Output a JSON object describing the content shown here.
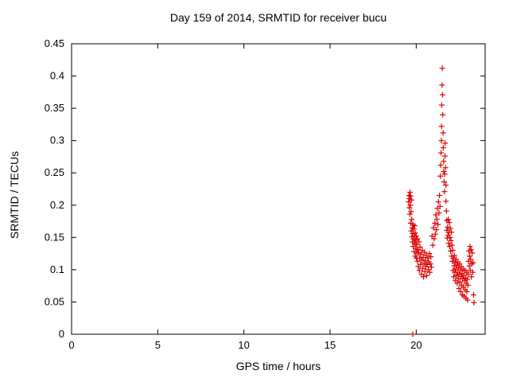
{
  "chart_data": {
    "type": "scatter",
    "title": "Day 159 of 2014, SRMTID for receiver bucu",
    "xlabel": "GPS time / hours",
    "ylabel": "SRMTID / TECUs",
    "xlim": [
      0,
      24
    ],
    "ylim": [
      0,
      0.45
    ],
    "grid": false,
    "legend": "none",
    "border_color": "#000000",
    "background": "#ffffff",
    "marker": {
      "shape": "plus",
      "color": "#dd0000",
      "size": 7
    },
    "xticks": {
      "values": [
        0,
        5,
        10,
        15,
        20
      ],
      "labels": [
        "0",
        "5",
        "10",
        "15",
        "20"
      ]
    },
    "yticks": {
      "values": [
        0,
        0.05,
        0.1,
        0.15,
        0.2,
        0.25,
        0.3,
        0.35,
        0.4,
        0.45
      ],
      "labels": [
        "0",
        "0.05",
        "0.1",
        "0.15",
        "0.2",
        "0.25",
        "0.3",
        "0.35",
        "0.4",
        "0.45"
      ]
    },
    "series": [
      {
        "name": "SRMTID",
        "points": [
          [
            19.56,
            0.205
          ],
          [
            19.58,
            0.215
          ],
          [
            19.6,
            0.196
          ],
          [
            19.61,
            0.21
          ],
          [
            19.63,
            0.186
          ],
          [
            19.64,
            0.22
          ],
          [
            19.66,
            0.2
          ],
          [
            19.67,
            0.214
          ],
          [
            19.68,
            0.172
          ],
          [
            19.7,
            0.19
          ],
          [
            19.71,
            0.16
          ],
          [
            19.72,
            0.208
          ],
          [
            19.74,
            0.178
          ],
          [
            19.75,
            0.151
          ],
          [
            19.77,
            0.165
          ],
          [
            19.78,
            0.143
          ],
          [
            19.8,
            0.0
          ],
          [
            19.8,
            0.156
          ],
          [
            19.82,
            0.17
          ],
          [
            19.83,
            0.136
          ],
          [
            19.85,
            0.148
          ],
          [
            19.86,
            0.163
          ],
          [
            19.88,
            0.128
          ],
          [
            19.89,
            0.152
          ],
          [
            19.91,
            0.168
          ],
          [
            19.92,
            0.141
          ],
          [
            19.94,
            0.157
          ],
          [
            19.95,
            0.121
          ],
          [
            19.97,
            0.146
          ],
          [
            19.98,
            0.133
          ],
          [
            20.0,
            0.152
          ],
          [
            20.01,
            0.118
          ],
          [
            20.03,
            0.139
          ],
          [
            20.04,
            0.126
          ],
          [
            20.06,
            0.148
          ],
          [
            20.08,
            0.113
          ],
          [
            20.1,
            0.131
          ],
          [
            20.12,
            0.105
          ],
          [
            20.14,
            0.126
          ],
          [
            20.16,
            0.143
          ],
          [
            20.18,
            0.099
          ],
          [
            20.2,
            0.118
          ],
          [
            20.22,
            0.135
          ],
          [
            20.25,
            0.108
          ],
          [
            20.27,
            0.124
          ],
          [
            20.3,
            0.093
          ],
          [
            20.32,
            0.115
          ],
          [
            20.35,
            0.13
          ],
          [
            20.37,
            0.102
          ],
          [
            20.4,
            0.119
          ],
          [
            20.42,
            0.089
          ],
          [
            20.45,
            0.11
          ],
          [
            20.48,
            0.127
          ],
          [
            20.5,
            0.097
          ],
          [
            20.53,
            0.114
          ],
          [
            20.56,
            0.105
          ],
          [
            20.58,
            0.122
          ],
          [
            20.61,
            0.091
          ],
          [
            20.64,
            0.108
          ],
          [
            20.67,
            0.118
          ],
          [
            20.7,
            0.1
          ],
          [
            20.73,
            0.112
          ],
          [
            20.76,
            0.125
          ],
          [
            20.79,
            0.096
          ],
          [
            20.82,
            0.109
          ],
          [
            20.85,
            0.12
          ],
          [
            20.88,
            0.104
          ],
          [
            20.92,
            0.152
          ],
          [
            20.96,
            0.138
          ],
          [
            21.0,
            0.165
          ],
          [
            21.04,
            0.148
          ],
          [
            21.08,
            0.172
          ],
          [
            21.11,
            0.155
          ],
          [
            21.14,
            0.185
          ],
          [
            21.17,
            0.162
          ],
          [
            21.2,
            0.178
          ],
          [
            21.23,
            0.195
          ],
          [
            21.26,
            0.17
          ],
          [
            21.29,
            0.205
          ],
          [
            21.32,
            0.188
          ],
          [
            21.35,
            0.215
          ],
          [
            21.38,
            0.198
          ],
          [
            21.4,
            0.245
          ],
          [
            21.42,
            0.262
          ],
          [
            21.44,
            0.281
          ],
          [
            21.46,
            0.3
          ],
          [
            21.47,
            0.322
          ],
          [
            21.48,
            0.355
          ],
          [
            21.5,
            0.386
          ],
          [
            21.51,
            0.412
          ],
          [
            21.53,
            0.371
          ],
          [
            21.54,
            0.34
          ],
          [
            21.56,
            0.312
          ],
          [
            21.57,
            0.289
          ],
          [
            21.59,
            0.268
          ],
          [
            21.6,
            0.252
          ],
          [
            21.62,
            0.236
          ],
          [
            21.64,
            0.221
          ],
          [
            21.65,
            0.248
          ],
          [
            21.67,
            0.276
          ],
          [
            21.68,
            0.296
          ],
          [
            21.7,
            0.258
          ],
          [
            21.72,
            0.231
          ],
          [
            21.73,
            0.206
          ],
          [
            21.75,
            0.191
          ],
          [
            21.77,
            0.176
          ],
          [
            21.78,
            0.161
          ],
          [
            21.8,
            0.149
          ],
          [
            21.82,
            0.166
          ],
          [
            21.84,
            0.153
          ],
          [
            21.86,
            0.178
          ],
          [
            21.88,
            0.141
          ],
          [
            21.9,
            0.158
          ],
          [
            21.92,
            0.173
          ],
          [
            21.94,
            0.136
          ],
          [
            21.96,
            0.15
          ],
          [
            21.98,
            0.164
          ],
          [
            22.0,
            0.129
          ],
          [
            22.02,
            0.145
          ],
          [
            22.04,
            0.158
          ],
          [
            22.06,
            0.121
          ],
          [
            22.08,
            0.138
          ],
          [
            22.1,
            0.113
          ],
          [
            22.12,
            0.13
          ],
          [
            22.14,
            0.099
          ],
          [
            22.16,
            0.118
          ],
          [
            22.18,
            0.089
          ],
          [
            22.2,
            0.106
          ],
          [
            22.22,
            0.122
          ],
          [
            22.24,
            0.096
          ],
          [
            22.26,
            0.111
          ],
          [
            22.28,
            0.083
          ],
          [
            22.3,
            0.101
          ],
          [
            22.32,
            0.116
          ],
          [
            22.34,
            0.091
          ],
          [
            22.36,
            0.107
          ],
          [
            22.38,
            0.079
          ],
          [
            22.4,
            0.096
          ],
          [
            22.42,
            0.112
          ],
          [
            22.44,
            0.086
          ],
          [
            22.46,
            0.103
          ],
          [
            22.48,
            0.071
          ],
          [
            22.5,
            0.093
          ],
          [
            22.52,
            0.109
          ],
          [
            22.54,
            0.081
          ],
          [
            22.56,
            0.099
          ],
          [
            22.58,
            0.066
          ],
          [
            22.6,
            0.089
          ],
          [
            22.62,
            0.105
          ],
          [
            22.64,
            0.076
          ],
          [
            22.66,
            0.094
          ],
          [
            22.68,
            0.061
          ],
          [
            22.7,
            0.086
          ],
          [
            22.72,
            0.101
          ],
          [
            22.74,
            0.073
          ],
          [
            22.76,
            0.091
          ],
          [
            22.78,
            0.059
          ],
          [
            22.8,
            0.083
          ],
          [
            22.82,
            0.099
          ],
          [
            22.84,
            0.069
          ],
          [
            22.86,
            0.087
          ],
          [
            22.88,
            0.056
          ],
          [
            22.9,
            0.079
          ],
          [
            22.92,
            0.096
          ],
          [
            22.94,
            0.066
          ],
          [
            22.96,
            0.085
          ],
          [
            22.98,
            0.053
          ],
          [
            23.0,
            0.076
          ],
          [
            23.02,
            0.093
          ],
          [
            23.04,
            0.113
          ],
          [
            23.06,
            0.129
          ],
          [
            23.08,
            0.106
          ],
          [
            23.1,
            0.121
          ],
          [
            23.12,
            0.136
          ],
          [
            23.14,
            0.099
          ],
          [
            23.16,
            0.116
          ],
          [
            23.18,
            0.131
          ],
          [
            23.2,
            0.089
          ],
          [
            23.22,
            0.109
          ],
          [
            23.25,
            0.126
          ],
          [
            23.28,
            0.096
          ],
          [
            23.3,
            0.111
          ],
          [
            23.33,
            0.061
          ],
          [
            23.35,
            0.049
          ]
        ]
      }
    ]
  }
}
